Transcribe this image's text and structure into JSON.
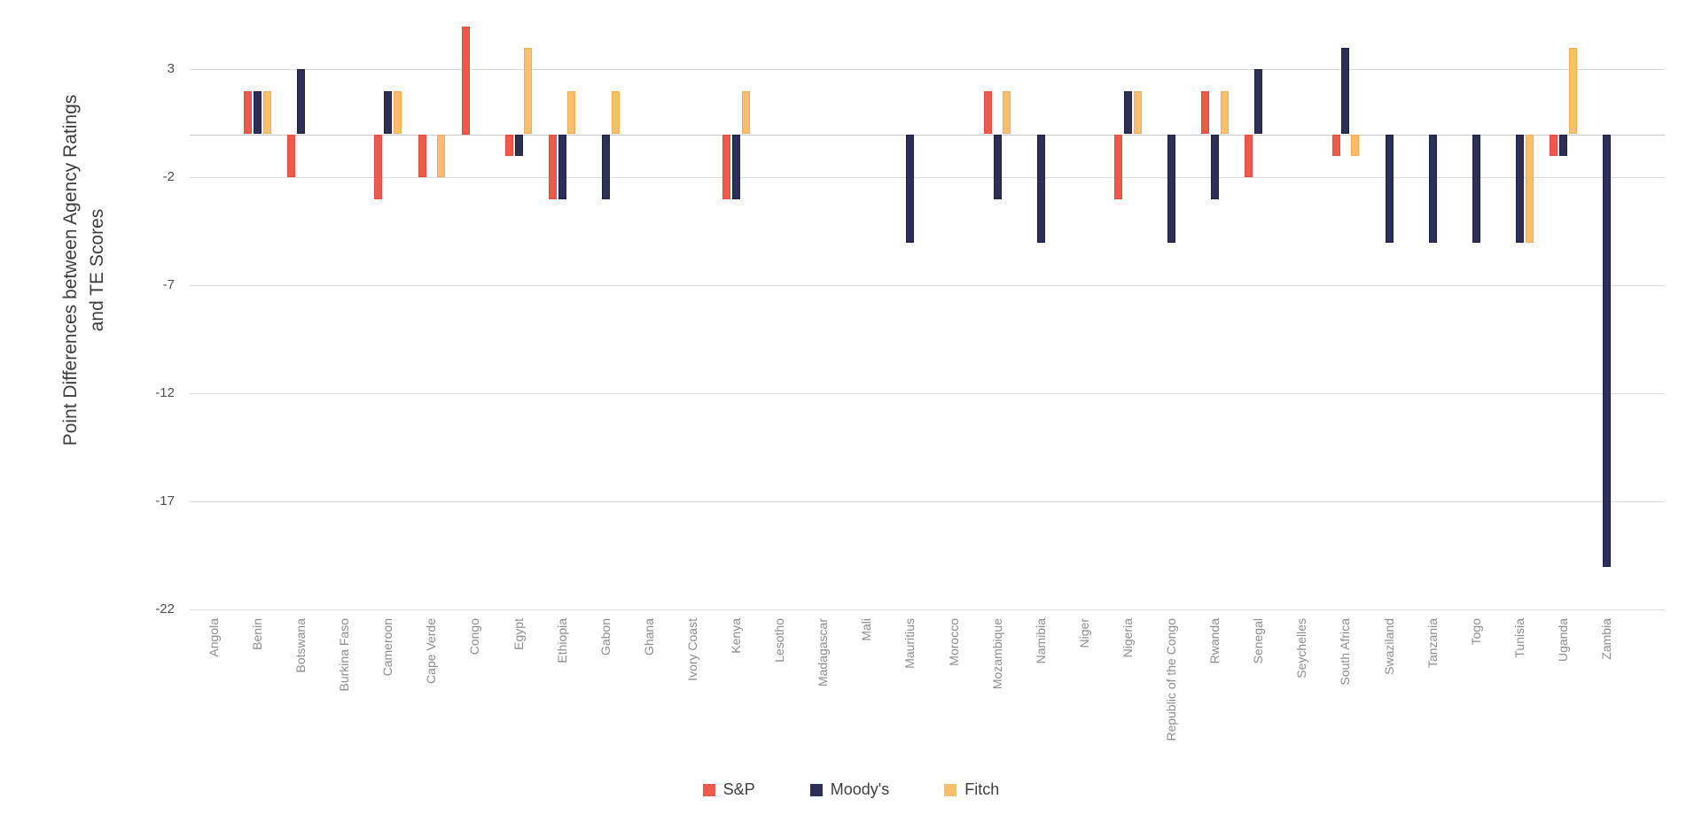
{
  "chart_data": {
    "type": "bar",
    "title": "",
    "ylabel_line1": "Point Differences between Agency Ratings",
    "ylabel_line2": "and TE Scores",
    "xlabel": "",
    "categories": [
      "Angola",
      "Benin",
      "Botswana",
      "Burkina Faso",
      "Cameroon",
      "Cape Verde",
      "Congo",
      "Egypt",
      "Ethiopia",
      "Gabon",
      "Ghana",
      "Ivory Coast",
      "Kenya",
      "Lesotho",
      "Madagascar",
      "Mali",
      "Mauritius",
      "Morocco",
      "Mozambique",
      "Namibia",
      "Niger",
      "Nigeria",
      "Republic of the Congo",
      "Rwanda",
      "Senegal",
      "Seychelles",
      "South Africa",
      "Swaziland",
      "Tanzania",
      "Togo",
      "Tunisia",
      "Uganda",
      "Zambia"
    ],
    "series": [
      {
        "name": "S&P",
        "color": "#EB5A4B",
        "border": "#E04C3E",
        "values": [
          null,
          2,
          -2,
          null,
          -3,
          -2,
          5,
          -1,
          -3,
          null,
          null,
          null,
          -3,
          null,
          null,
          null,
          null,
          null,
          2,
          null,
          null,
          -3,
          null,
          2,
          -2,
          null,
          -1,
          null,
          null,
          null,
          null,
          -1,
          null
        ]
      },
      {
        "name": "Moody's",
        "color": "#2C2F56",
        "border": "#1C1F3E",
        "values": [
          null,
          2,
          3,
          null,
          2,
          null,
          null,
          -1,
          -3,
          -3,
          null,
          null,
          -3,
          null,
          null,
          null,
          -5,
          null,
          -3,
          -5,
          null,
          2,
          -5,
          -3,
          3,
          null,
          4,
          -5,
          -5,
          -5,
          -5,
          -1,
          -20
        ]
      },
      {
        "name": "Fitch",
        "color": "#F9BF6C",
        "border": "#F0AC54",
        "values": [
          null,
          2,
          null,
          null,
          2,
          -2,
          null,
          4,
          2,
          2,
          null,
          null,
          2,
          null,
          null,
          null,
          null,
          null,
          2,
          null,
          null,
          2,
          null,
          2,
          null,
          null,
          -1,
          null,
          null,
          null,
          -5,
          4,
          null
        ]
      }
    ],
    "y_ticks": [
      3,
      -2,
      -7,
      -12,
      -17,
      -22
    ],
    "ylim": [
      -22.5,
      5.5
    ],
    "grid": true,
    "legend_position": "bottom"
  }
}
